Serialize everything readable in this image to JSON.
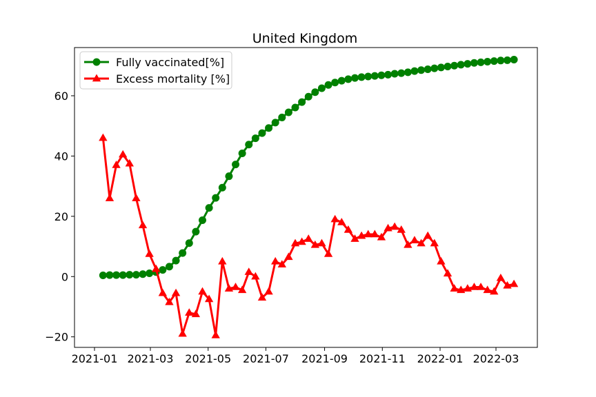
{
  "chart_data": {
    "type": "line",
    "title": "United Kingdom",
    "xlabel": "",
    "ylabel": "",
    "x_tick_labels": [
      "2021-01",
      "2021-03",
      "2021-05",
      "2021-07",
      "2021-09",
      "2021-11",
      "2022-01",
      "2022-03"
    ],
    "y_ticks": [
      -20,
      0,
      20,
      40,
      60
    ],
    "ylim": [
      -23.5,
      76
    ],
    "legend_position": "top-left",
    "grid": false,
    "series": [
      {
        "name": "Fully vaccinated[%]",
        "color": "#008000",
        "marker": "circle",
        "points": [
          [
            "2021-01-10",
            0.4
          ],
          [
            "2021-01-17",
            0.5
          ],
          [
            "2021-01-24",
            0.5
          ],
          [
            "2021-01-31",
            0.5
          ],
          [
            "2021-02-07",
            0.6
          ],
          [
            "2021-02-14",
            0.6
          ],
          [
            "2021-02-21",
            0.8
          ],
          [
            "2021-02-28",
            1.1
          ],
          [
            "2021-03-07",
            1.5
          ],
          [
            "2021-03-14",
            2.2
          ],
          [
            "2021-03-21",
            3.3
          ],
          [
            "2021-03-28",
            5.3
          ],
          [
            "2021-04-04",
            7.8
          ],
          [
            "2021-04-11",
            11.1
          ],
          [
            "2021-04-18",
            14.9
          ],
          [
            "2021-04-25",
            18.7
          ],
          [
            "2021-05-02",
            22.8
          ],
          [
            "2021-05-09",
            26.1
          ],
          [
            "2021-05-16",
            29.5
          ],
          [
            "2021-05-23",
            33.3
          ],
          [
            "2021-05-30",
            37.2
          ],
          [
            "2021-06-06",
            40.9
          ],
          [
            "2021-06-13",
            43.8
          ],
          [
            "2021-06-20",
            45.9
          ],
          [
            "2021-06-27",
            47.6
          ],
          [
            "2021-07-04",
            49.3
          ],
          [
            "2021-07-11",
            51.1
          ],
          [
            "2021-07-18",
            52.8
          ],
          [
            "2021-07-25",
            54.5
          ],
          [
            "2021-08-01",
            56.1
          ],
          [
            "2021-08-08",
            57.9
          ],
          [
            "2021-08-15",
            59.7
          ],
          [
            "2021-08-22",
            61.2
          ],
          [
            "2021-08-29",
            62.5
          ],
          [
            "2021-09-05",
            63.6
          ],
          [
            "2021-09-12",
            64.4
          ],
          [
            "2021-09-19",
            65.0
          ],
          [
            "2021-09-26",
            65.5
          ],
          [
            "2021-10-03",
            65.9
          ],
          [
            "2021-10-10",
            66.2
          ],
          [
            "2021-10-17",
            66.4
          ],
          [
            "2021-10-24",
            66.6
          ],
          [
            "2021-10-31",
            66.8
          ],
          [
            "2021-11-07",
            67.0
          ],
          [
            "2021-11-14",
            67.3
          ],
          [
            "2021-11-21",
            67.5
          ],
          [
            "2021-11-28",
            67.8
          ],
          [
            "2021-12-05",
            68.2
          ],
          [
            "2021-12-12",
            68.5
          ],
          [
            "2021-12-19",
            68.8
          ],
          [
            "2021-12-26",
            69.1
          ],
          [
            "2022-01-02",
            69.4
          ],
          [
            "2022-01-09",
            69.7
          ],
          [
            "2022-01-16",
            70.0
          ],
          [
            "2022-01-23",
            70.3
          ],
          [
            "2022-01-30",
            70.6
          ],
          [
            "2022-02-06",
            70.9
          ],
          [
            "2022-02-13",
            71.1
          ],
          [
            "2022-02-20",
            71.3
          ],
          [
            "2022-02-27",
            71.5
          ],
          [
            "2022-03-06",
            71.7
          ],
          [
            "2022-03-13",
            71.8
          ],
          [
            "2022-03-20",
            72.0
          ]
        ]
      },
      {
        "name": "Excess mortality [%]",
        "color": "#ff0000",
        "marker": "triangle",
        "points": [
          [
            "2021-01-10",
            46.0
          ],
          [
            "2021-01-17",
            26.0
          ],
          [
            "2021-01-24",
            37.0
          ],
          [
            "2021-01-31",
            40.5
          ],
          [
            "2021-02-07",
            37.5
          ],
          [
            "2021-02-14",
            26.0
          ],
          [
            "2021-02-21",
            17.0
          ],
          [
            "2021-02-28",
            7.5
          ],
          [
            "2021-03-07",
            2.5
          ],
          [
            "2021-03-14",
            -5.5
          ],
          [
            "2021-03-21",
            -8.5
          ],
          [
            "2021-03-28",
            -5.5
          ],
          [
            "2021-04-04",
            -19.0
          ],
          [
            "2021-04-11",
            -12.0
          ],
          [
            "2021-04-18",
            -12.5
          ],
          [
            "2021-04-25",
            -5.0
          ],
          [
            "2021-05-02",
            -7.5
          ],
          [
            "2021-05-09",
            -19.5
          ],
          [
            "2021-05-16",
            5.0
          ],
          [
            "2021-05-23",
            -4.0
          ],
          [
            "2021-05-30",
            -3.5
          ],
          [
            "2021-06-06",
            -4.5
          ],
          [
            "2021-06-13",
            1.5
          ],
          [
            "2021-06-20",
            0.0
          ],
          [
            "2021-06-27",
            -7.0
          ],
          [
            "2021-07-04",
            -5.0
          ],
          [
            "2021-07-11",
            5.0
          ],
          [
            "2021-07-18",
            4.0
          ],
          [
            "2021-07-25",
            6.5
          ],
          [
            "2021-08-01",
            11.0
          ],
          [
            "2021-08-08",
            11.5
          ],
          [
            "2021-08-15",
            12.5
          ],
          [
            "2021-08-22",
            10.5
          ],
          [
            "2021-08-29",
            11.0
          ],
          [
            "2021-09-05",
            7.5
          ],
          [
            "2021-09-12",
            19.0
          ],
          [
            "2021-09-19",
            18.0
          ],
          [
            "2021-09-26",
            15.5
          ],
          [
            "2021-10-03",
            12.5
          ],
          [
            "2021-10-10",
            13.5
          ],
          [
            "2021-10-17",
            14.0
          ],
          [
            "2021-10-24",
            14.0
          ],
          [
            "2021-10-31",
            13.0
          ],
          [
            "2021-11-07",
            16.0
          ],
          [
            "2021-11-14",
            16.5
          ],
          [
            "2021-11-21",
            15.5
          ],
          [
            "2021-11-28",
            10.5
          ],
          [
            "2021-12-05",
            12.0
          ],
          [
            "2021-12-12",
            11.0
          ],
          [
            "2021-12-19",
            13.5
          ],
          [
            "2021-12-26",
            11.0
          ],
          [
            "2022-01-02",
            5.0
          ],
          [
            "2022-01-09",
            1.0
          ],
          [
            "2022-01-16",
            -4.0
          ],
          [
            "2022-01-23",
            -4.5
          ],
          [
            "2022-01-30",
            -4.0
          ],
          [
            "2022-02-06",
            -3.5
          ],
          [
            "2022-02-13",
            -3.5
          ],
          [
            "2022-02-20",
            -4.5
          ],
          [
            "2022-02-27",
            -5.0
          ],
          [
            "2022-03-06",
            -0.5
          ],
          [
            "2022-03-13",
            -3.0
          ],
          [
            "2022-03-20",
            -2.5
          ]
        ]
      }
    ]
  }
}
